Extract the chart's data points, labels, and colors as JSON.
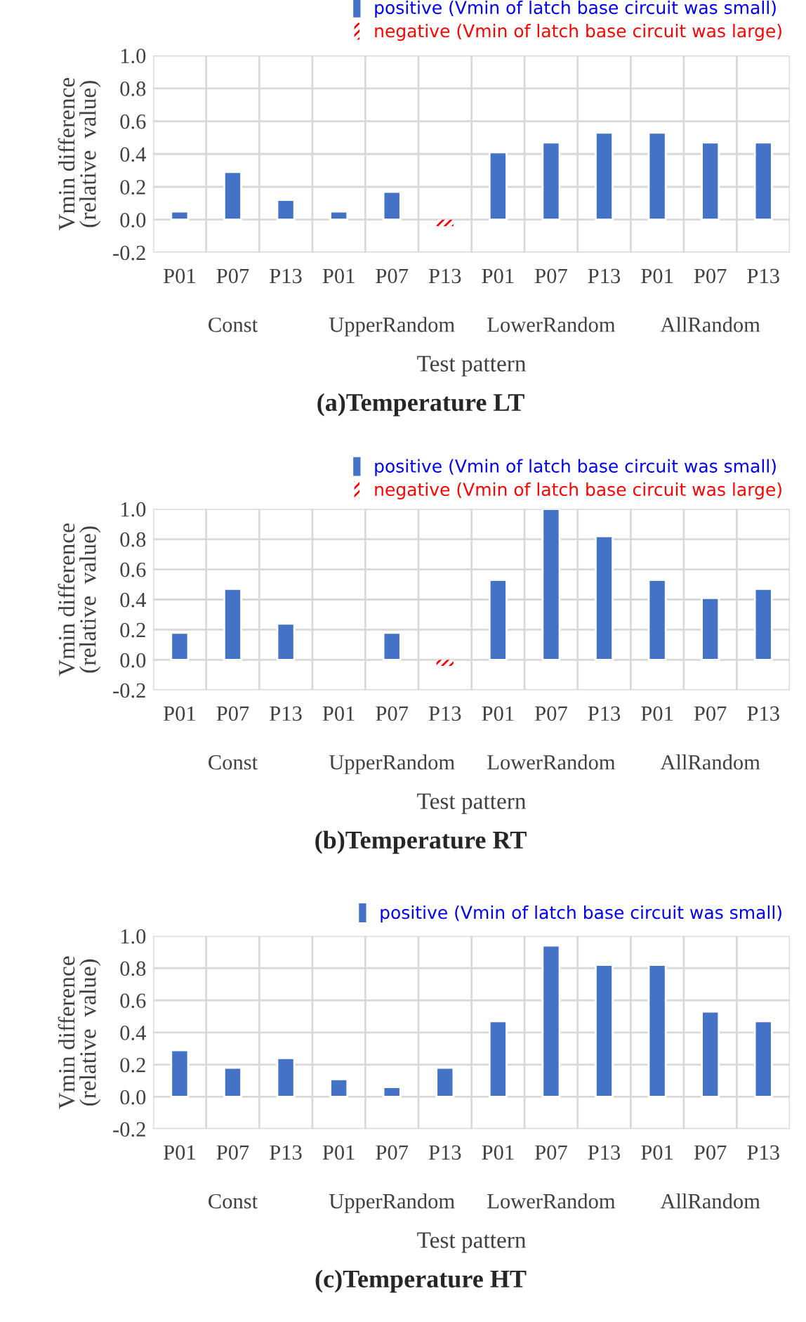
{
  "chart_data": [
    {
      "type": "bar",
      "title": "(a)Temperature LT",
      "xlabel": "Test pattern",
      "ylabel": "Vmin difference\n(relative  value)",
      "categories": [
        "P01",
        "P07",
        "P13",
        "P01",
        "P07",
        "P13",
        "P01",
        "P07",
        "P13",
        "P01",
        "P07",
        "P13"
      ],
      "annotations": [
        "Const",
        "UpperRandom",
        "LowerRandom",
        "AllRandom"
      ],
      "series": [
        {
          "name": "positive (Vmin of latch base circuit was small)",
          "color": "#4472c4",
          "values": [
            0.05,
            0.29,
            0.12,
            0.05,
            0.17,
            null,
            0.41,
            0.47,
            0.53,
            0.53,
            0.47,
            0.47
          ]
        },
        {
          "name": "negative (Vmin of latch base circuit was large)",
          "color": "#ff0000",
          "values": [
            null,
            null,
            null,
            null,
            null,
            -0.04,
            null,
            null,
            null,
            null,
            null,
            null
          ]
        }
      ],
      "ylim": [
        -0.2,
        1.0
      ],
      "yticks": [
        {
          "value": -0.2,
          "label": "-0.2"
        },
        {
          "value": 0.0,
          "label": "0.0"
        },
        {
          "value": 0.2,
          "label": "0.2"
        },
        {
          "value": 0.4,
          "label": "0.4"
        },
        {
          "value": 0.6,
          "label": "0.6"
        },
        {
          "value": 0.8,
          "label": "0.8"
        },
        {
          "value": 1.0,
          "label": "1.0"
        }
      ],
      "grid": true,
      "legend": "top right"
    },
    {
      "type": "bar",
      "title": "(b)Temperature RT",
      "xlabel": "Test pattern",
      "ylabel": "Vmin difference\n(relative  value)",
      "categories": [
        "P01",
        "P07",
        "P13",
        "P01",
        "P07",
        "P13",
        "P01",
        "P07",
        "P13",
        "P01",
        "P07",
        "P13"
      ],
      "annotations": [
        "Const",
        "UpperRandom",
        "LowerRandom",
        "AllRandom"
      ],
      "series": [
        {
          "name": "positive (Vmin of latch base circuit was small)",
          "color": "#4472c4",
          "values": [
            0.18,
            0.47,
            0.24,
            null,
            0.18,
            null,
            0.53,
            1.0,
            0.82,
            0.53,
            0.41,
            0.47
          ]
        },
        {
          "name": "negative (Vmin of latch base circuit was large)",
          "color": "#ff0000",
          "values": [
            null,
            null,
            null,
            null,
            null,
            -0.04,
            null,
            null,
            null,
            null,
            null,
            null
          ]
        }
      ],
      "ylim": [
        -0.2,
        1.0
      ],
      "yticks": [
        {
          "value": -0.2,
          "label": "-0.2"
        },
        {
          "value": 0.0,
          "label": "0.0"
        },
        {
          "value": 0.2,
          "label": "0.2"
        },
        {
          "value": 0.4,
          "label": "0.4"
        },
        {
          "value": 0.6,
          "label": "0.6"
        },
        {
          "value": 0.8,
          "label": "0.8"
        },
        {
          "value": 1.0,
          "label": "1.0"
        }
      ],
      "grid": true,
      "legend": "top right"
    },
    {
      "type": "bar",
      "title": "(c)Temperature HT",
      "xlabel": "Test pattern",
      "ylabel": "Vmin difference\n(relative  value)",
      "categories": [
        "P01",
        "P07",
        "P13",
        "P01",
        "P07",
        "P13",
        "P01",
        "P07",
        "P13",
        "P01",
        "P07",
        "P13"
      ],
      "annotations": [
        "Const",
        "UpperRandom",
        "LowerRandom",
        "AllRandom"
      ],
      "series": [
        {
          "name": "positive (Vmin of latch base circuit was small)",
          "color": "#4472c4",
          "values": [
            0.29,
            0.18,
            0.24,
            0.11,
            0.06,
            0.18,
            0.47,
            0.94,
            0.82,
            0.82,
            0.53,
            0.47
          ]
        }
      ],
      "ylim": [
        -0.2,
        1.0
      ],
      "yticks": [
        {
          "value": -0.2,
          "label": "-0.2"
        },
        {
          "value": 0.0,
          "label": "0.0"
        },
        {
          "value": 0.2,
          "label": "0.2"
        },
        {
          "value": 0.4,
          "label": "0.4"
        },
        {
          "value": 0.6,
          "label": "0.6"
        },
        {
          "value": 0.8,
          "label": "0.8"
        },
        {
          "value": 1.0,
          "label": "1.0"
        }
      ],
      "grid": true,
      "legend": "top right"
    }
  ]
}
